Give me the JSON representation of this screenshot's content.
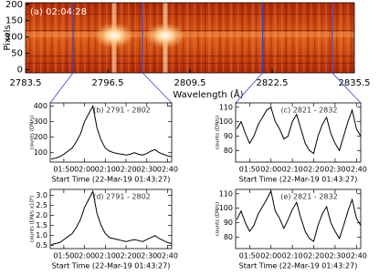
{
  "chart_data": [
    {
      "type": "image",
      "title": "(a) 02:04:28",
      "x_label": "Wavelength (Å)",
      "y_label": "Pixels",
      "xlim": [
        2783.5,
        2835.5
      ],
      "xticks": [
        2783.5,
        2796.5,
        2809.5,
        2822.5,
        2835.5
      ],
      "ylim": [
        -10,
        205
      ],
      "yticks": [
        0,
        50,
        100,
        150,
        200
      ],
      "bands": [
        2791,
        2802,
        2821,
        2832
      ],
      "band_color": "#3344cc"
    },
    {
      "type": "line",
      "title": "(b) 2791 - 2802",
      "x_label": "Start Time (22-Mar-19 01:43:27)",
      "y_label": "counts (DN/s)",
      "xlim": [
        103.45,
        162
      ],
      "xticks": [
        {
          "value": 110,
          "label": "01:50"
        },
        {
          "value": 120,
          "label": "02:00"
        },
        {
          "value": 130,
          "label": "02:10"
        },
        {
          "value": 140,
          "label": "02:20"
        },
        {
          "value": 150,
          "label": "02:30"
        },
        {
          "value": 160,
          "label": "02:40"
        }
      ],
      "ylim": [
        40,
        420
      ],
      "yticks": [
        100,
        200,
        300,
        400
      ],
      "x": [
        104,
        106,
        108,
        110,
        112,
        114,
        116,
        118,
        120,
        122,
        124,
        126,
        128,
        130,
        132,
        134,
        136,
        138,
        140,
        142,
        144,
        146,
        148,
        150,
        152,
        154,
        156,
        158,
        160,
        162
      ],
      "values": [
        60,
        65,
        75,
        90,
        110,
        130,
        170,
        220,
        300,
        350,
        400,
        260,
        180,
        130,
        110,
        100,
        95,
        90,
        85,
        90,
        100,
        90,
        85,
        95,
        110,
        120,
        100,
        90,
        80,
        75
      ],
      "color": "#000000"
    },
    {
      "type": "line",
      "title": "(c) 2821 - 2832",
      "x_label": "Start Time (22-Mar-19 01:43:27)",
      "y_label": "counts (DN/s)",
      "xlim": [
        103.45,
        162
      ],
      "xticks": [
        {
          "value": 110,
          "label": "01:50"
        },
        {
          "value": 120,
          "label": "02:00"
        },
        {
          "value": 130,
          "label": "02:10"
        },
        {
          "value": 140,
          "label": "02:20"
        },
        {
          "value": 150,
          "label": "02:30"
        },
        {
          "value": 160,
          "label": "02:40"
        }
      ],
      "ylim": [
        72,
        113
      ],
      "yticks": [
        80,
        90,
        100,
        110
      ],
      "x": [
        104,
        106,
        108,
        110,
        112,
        114,
        116,
        118,
        120,
        122,
        124,
        126,
        128,
        130,
        132,
        134,
        136,
        138,
        140,
        142,
        144,
        146,
        148,
        150,
        152,
        154,
        156,
        158,
        160,
        162
      ],
      "values": [
        95,
        100,
        92,
        85,
        90,
        98,
        103,
        108,
        110,
        100,
        95,
        88,
        90,
        100,
        105,
        95,
        85,
        80,
        78,
        90,
        98,
        103,
        92,
        85,
        80,
        90,
        100,
        108,
        95,
        90
      ],
      "color": "#000000"
    },
    {
      "type": "line",
      "title": "(d) 2791 - 2802",
      "x_label": "Start Time (22-Mar-19 01:43:27)",
      "y_label": "counts (DN/s x10⁴)",
      "xlim": [
        103.45,
        162
      ],
      "xticks": [
        {
          "value": 110,
          "label": "01:50"
        },
        {
          "value": 120,
          "label": "02:00"
        },
        {
          "value": 130,
          "label": "02:10"
        },
        {
          "value": 140,
          "label": "02:20"
        },
        {
          "value": 150,
          "label": "02:30"
        },
        {
          "value": 160,
          "label": "02:40"
        }
      ],
      "ylim": [
        0.35,
        3.3
      ],
      "yticks": [
        0.5,
        {
          "value": 1,
          "label": "1.0"
        },
        1.5,
        {
          "value": 2,
          "label": "2.0"
        },
        2.5,
        {
          "value": 3,
          "label": "3.0"
        }
      ],
      "x": [
        104,
        106,
        108,
        110,
        112,
        114,
        116,
        118,
        120,
        122,
        124,
        126,
        128,
        130,
        132,
        134,
        136,
        138,
        140,
        142,
        144,
        146,
        148,
        150,
        152,
        154,
        156,
        158,
        160,
        162
      ],
      "values": [
        0.55,
        0.6,
        0.65,
        0.8,
        0.95,
        1.1,
        1.4,
        1.8,
        2.4,
        2.8,
        3.2,
        2.1,
        1.5,
        1.1,
        0.9,
        0.85,
        0.8,
        0.75,
        0.7,
        0.75,
        0.8,
        0.75,
        0.7,
        0.8,
        0.9,
        1.0,
        0.85,
        0.75,
        0.65,
        0.6
      ],
      "color": "#000000"
    },
    {
      "type": "line",
      "title": "(e) 2821 - 2832",
      "x_label": "Start Time (22-Mar-19 01:43:27)",
      "y_label": "counts (DN/s)",
      "xlim": [
        103.45,
        162
      ],
      "xticks": [
        {
          "value": 110,
          "label": "01:50"
        },
        {
          "value": 120,
          "label": "02:00"
        },
        {
          "value": 130,
          "label": "02:10"
        },
        {
          "value": 140,
          "label": "02:20"
        },
        {
          "value": 150,
          "label": "02:30"
        },
        {
          "value": 160,
          "label": "02:40"
        }
      ],
      "ylim": [
        72,
        113
      ],
      "yticks": [
        80,
        90,
        100,
        110
      ],
      "x": [
        104,
        106,
        108,
        110,
        112,
        114,
        116,
        118,
        120,
        122,
        124,
        126,
        128,
        130,
        132,
        134,
        136,
        138,
        140,
        142,
        144,
        146,
        148,
        150,
        152,
        154,
        156,
        158,
        160,
        162
      ],
      "values": [
        92,
        98,
        90,
        84,
        88,
        96,
        101,
        106,
        112,
        98,
        93,
        86,
        92,
        99,
        104,
        93,
        84,
        79,
        77,
        88,
        96,
        101,
        90,
        84,
        79,
        88,
        98,
        106,
        93,
        88
      ],
      "color": "#000000"
    }
  ]
}
